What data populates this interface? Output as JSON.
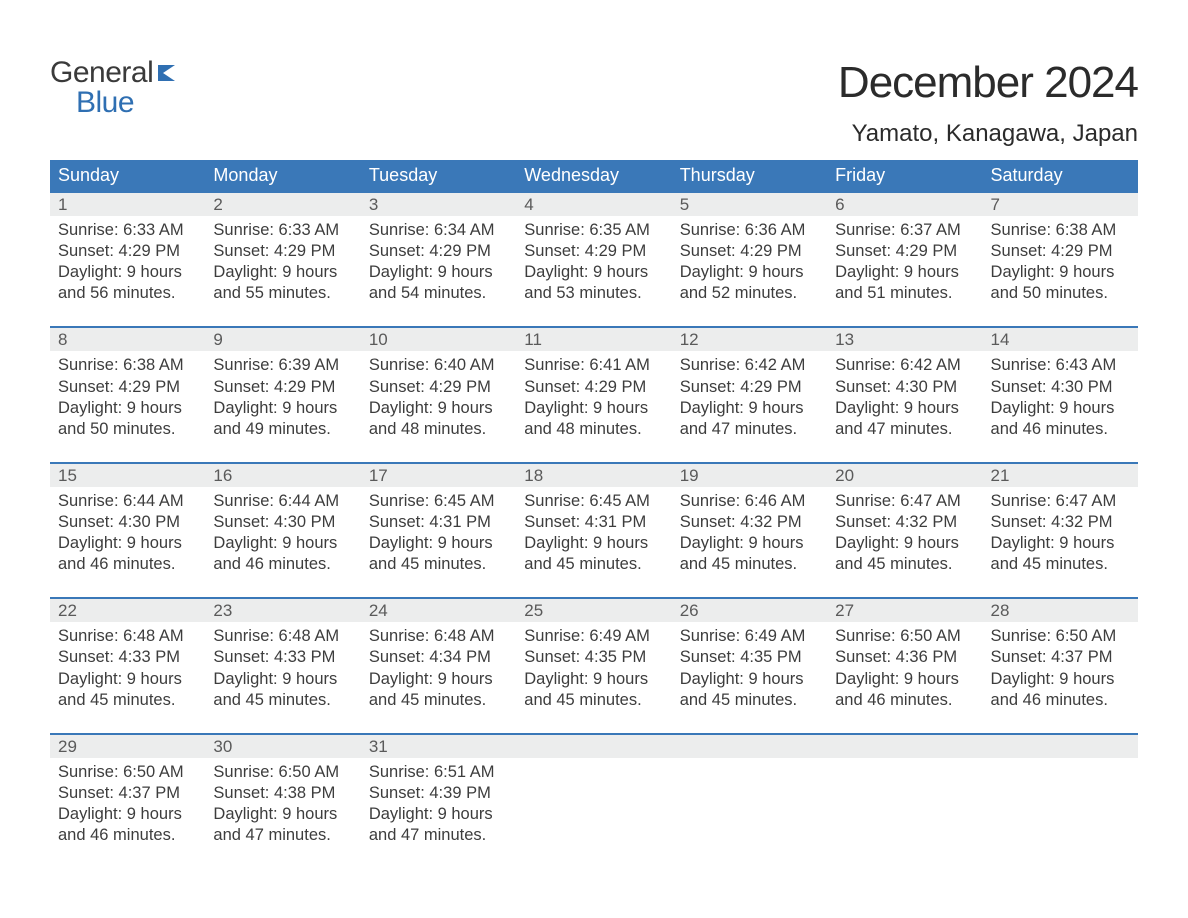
{
  "brand": {
    "line1": "General",
    "line2": "Blue"
  },
  "title": "December 2024",
  "subtitle": "Yamato, Kanagawa, Japan",
  "colors": {
    "header_bg": "#3a78b8",
    "header_text": "#ffffff",
    "week_border": "#3a78b8",
    "daynum_bg": "#eceded",
    "daynum_text": "#5a5a5a",
    "body_text": "#3d3d3d",
    "page_bg": "#ffffff",
    "logo_gray": "#3a3a3a",
    "logo_blue": "#2f6fb2"
  },
  "dow": [
    "Sunday",
    "Monday",
    "Tuesday",
    "Wednesday",
    "Thursday",
    "Friday",
    "Saturday"
  ],
  "weeks": [
    [
      {
        "n": "1",
        "sr": "6:33 AM",
        "ss": "4:29 PM",
        "dl": "9 hours and 56 minutes."
      },
      {
        "n": "2",
        "sr": "6:33 AM",
        "ss": "4:29 PM",
        "dl": "9 hours and 55 minutes."
      },
      {
        "n": "3",
        "sr": "6:34 AM",
        "ss": "4:29 PM",
        "dl": "9 hours and 54 minutes."
      },
      {
        "n": "4",
        "sr": "6:35 AM",
        "ss": "4:29 PM",
        "dl": "9 hours and 53 minutes."
      },
      {
        "n": "5",
        "sr": "6:36 AM",
        "ss": "4:29 PM",
        "dl": "9 hours and 52 minutes."
      },
      {
        "n": "6",
        "sr": "6:37 AM",
        "ss": "4:29 PM",
        "dl": "9 hours and 51 minutes."
      },
      {
        "n": "7",
        "sr": "6:38 AM",
        "ss": "4:29 PM",
        "dl": "9 hours and 50 minutes."
      }
    ],
    [
      {
        "n": "8",
        "sr": "6:38 AM",
        "ss": "4:29 PM",
        "dl": "9 hours and 50 minutes."
      },
      {
        "n": "9",
        "sr": "6:39 AM",
        "ss": "4:29 PM",
        "dl": "9 hours and 49 minutes."
      },
      {
        "n": "10",
        "sr": "6:40 AM",
        "ss": "4:29 PM",
        "dl": "9 hours and 48 minutes."
      },
      {
        "n": "11",
        "sr": "6:41 AM",
        "ss": "4:29 PM",
        "dl": "9 hours and 48 minutes."
      },
      {
        "n": "12",
        "sr": "6:42 AM",
        "ss": "4:29 PM",
        "dl": "9 hours and 47 minutes."
      },
      {
        "n": "13",
        "sr": "6:42 AM",
        "ss": "4:30 PM",
        "dl": "9 hours and 47 minutes."
      },
      {
        "n": "14",
        "sr": "6:43 AM",
        "ss": "4:30 PM",
        "dl": "9 hours and 46 minutes."
      }
    ],
    [
      {
        "n": "15",
        "sr": "6:44 AM",
        "ss": "4:30 PM",
        "dl": "9 hours and 46 minutes."
      },
      {
        "n": "16",
        "sr": "6:44 AM",
        "ss": "4:30 PM",
        "dl": "9 hours and 46 minutes."
      },
      {
        "n": "17",
        "sr": "6:45 AM",
        "ss": "4:31 PM",
        "dl": "9 hours and 45 minutes."
      },
      {
        "n": "18",
        "sr": "6:45 AM",
        "ss": "4:31 PM",
        "dl": "9 hours and 45 minutes."
      },
      {
        "n": "19",
        "sr": "6:46 AM",
        "ss": "4:32 PM",
        "dl": "9 hours and 45 minutes."
      },
      {
        "n": "20",
        "sr": "6:47 AM",
        "ss": "4:32 PM",
        "dl": "9 hours and 45 minutes."
      },
      {
        "n": "21",
        "sr": "6:47 AM",
        "ss": "4:32 PM",
        "dl": "9 hours and 45 minutes."
      }
    ],
    [
      {
        "n": "22",
        "sr": "6:48 AM",
        "ss": "4:33 PM",
        "dl": "9 hours and 45 minutes."
      },
      {
        "n": "23",
        "sr": "6:48 AM",
        "ss": "4:33 PM",
        "dl": "9 hours and 45 minutes."
      },
      {
        "n": "24",
        "sr": "6:48 AM",
        "ss": "4:34 PM",
        "dl": "9 hours and 45 minutes."
      },
      {
        "n": "25",
        "sr": "6:49 AM",
        "ss": "4:35 PM",
        "dl": "9 hours and 45 minutes."
      },
      {
        "n": "26",
        "sr": "6:49 AM",
        "ss": "4:35 PM",
        "dl": "9 hours and 45 minutes."
      },
      {
        "n": "27",
        "sr": "6:50 AM",
        "ss": "4:36 PM",
        "dl": "9 hours and 46 minutes."
      },
      {
        "n": "28",
        "sr": "6:50 AM",
        "ss": "4:37 PM",
        "dl": "9 hours and 46 minutes."
      }
    ],
    [
      {
        "n": "29",
        "sr": "6:50 AM",
        "ss": "4:37 PM",
        "dl": "9 hours and 46 minutes."
      },
      {
        "n": "30",
        "sr": "6:50 AM",
        "ss": "4:38 PM",
        "dl": "9 hours and 47 minutes."
      },
      {
        "n": "31",
        "sr": "6:51 AM",
        "ss": "4:39 PM",
        "dl": "9 hours and 47 minutes."
      },
      null,
      null,
      null,
      null
    ]
  ],
  "labels": {
    "sunrise": "Sunrise:",
    "sunset": "Sunset:",
    "daylight": "Daylight:"
  }
}
